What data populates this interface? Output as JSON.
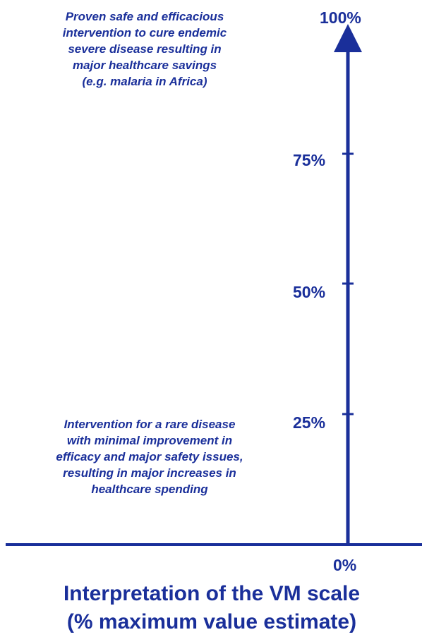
{
  "colors": {
    "primary": "#1a2f9a"
  },
  "scale": {
    "ticks": [
      {
        "value": 100,
        "label": "100%"
      },
      {
        "value": 75,
        "label": "75%"
      },
      {
        "value": 50,
        "label": "50%"
      },
      {
        "value": 25,
        "label": "25%"
      },
      {
        "value": 0,
        "label": "0%"
      }
    ]
  },
  "annotations": {
    "top": {
      "lines": [
        "Proven safe and efficacious",
        "intervention to cure endemic",
        "severe disease resulting in",
        "major healthcare savings",
        "(e.g. malaria in Africa)"
      ]
    },
    "bottom": {
      "lines": [
        "Intervention for a rare disease",
        "with minimal improvement in",
        "efficacy and major safety issues,",
        "resulting in major increases in",
        "healthcare spending"
      ]
    }
  },
  "title": {
    "line1": "Interpretation of the VM scale",
    "line2": "(% maximum value estimate)"
  }
}
